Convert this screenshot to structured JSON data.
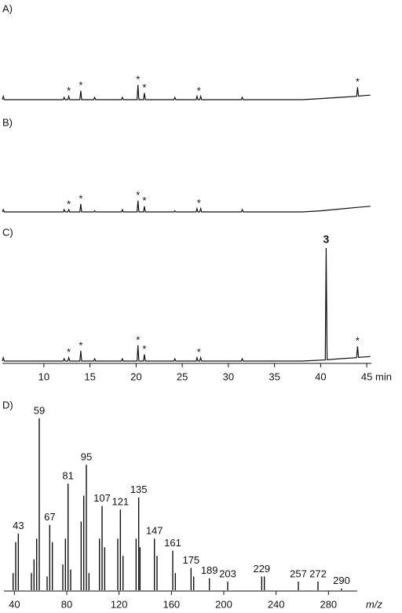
{
  "chart_data": [
    {
      "type": "line",
      "label": "A)",
      "color": "#111",
      "x": [
        5.5,
        5.6,
        5.7,
        12.1,
        12.2,
        12.3,
        12.6,
        12.7,
        12.8,
        13.9,
        14.0,
        14.1,
        15.4,
        15.5,
        15.6,
        18.4,
        18.5,
        18.6,
        20.1,
        20.2,
        20.3,
        20.8,
        20.9,
        21.0,
        24.1,
        24.2,
        24.3,
        26.5,
        26.6,
        26.7,
        26.9,
        27.0,
        27.1,
        31.4,
        31.5,
        31.6,
        38,
        40,
        42,
        43.9,
        44.0,
        44.1,
        45.4
      ],
      "values": [
        0,
        3,
        0,
        0,
        2,
        0,
        0,
        3,
        0,
        0,
        8,
        0,
        0,
        2,
        0,
        0,
        2,
        0,
        0,
        13,
        0,
        0,
        6,
        0,
        0,
        2,
        0,
        0,
        3,
        0,
        0,
        3,
        0,
        0,
        2,
        0,
        0,
        1,
        2,
        3,
        11,
        3.2,
        4
      ],
      "xlim": [
        5.5,
        45.5
      ],
      "ylim": [
        0,
        100
      ],
      "annotations": [
        {
          "text": "*",
          "x": 12.7
        },
        {
          "text": "*",
          "x": 14.0
        },
        {
          "text": "*",
          "x": 20.2
        },
        {
          "text": "*",
          "x": 20.9
        },
        {
          "text": "*",
          "x": 26.8
        },
        {
          "text": "*",
          "x": 44.0
        }
      ]
    },
    {
      "type": "line",
      "label": "B)",
      "color": "#111",
      "x": [
        5.5,
        5.6,
        5.7,
        12.1,
        12.2,
        12.3,
        12.6,
        12.7,
        12.8,
        13.9,
        14.0,
        14.1,
        15.4,
        15.5,
        15.6,
        18.4,
        18.5,
        18.6,
        20.1,
        20.2,
        20.3,
        20.8,
        20.9,
        21.0,
        24.1,
        24.2,
        24.3,
        26.5,
        26.6,
        26.7,
        26.9,
        27.0,
        27.1,
        31.4,
        31.5,
        31.6,
        38,
        40,
        42,
        44,
        45.4
      ],
      "values": [
        0,
        2,
        0,
        0,
        2,
        0,
        0,
        2,
        0,
        0,
        7,
        0,
        0,
        1,
        0,
        0,
        2,
        0,
        0,
        10,
        0,
        0,
        5,
        0,
        0,
        1,
        0,
        0,
        3,
        0,
        0,
        3,
        0,
        0,
        2,
        0,
        0,
        1,
        2.5,
        4,
        5
      ],
      "xlim": [
        5.5,
        45.5
      ],
      "ylim": [
        0,
        100
      ],
      "annotations": [
        {
          "text": "*",
          "x": 12.7
        },
        {
          "text": "*",
          "x": 14.0
        },
        {
          "text": "*",
          "x": 20.2
        },
        {
          "text": "*",
          "x": 20.9
        },
        {
          "text": "*",
          "x": 26.8
        }
      ]
    },
    {
      "type": "line",
      "label": "C)",
      "color": "#111",
      "x": [
        5.5,
        5.6,
        5.7,
        12.1,
        12.2,
        12.3,
        12.6,
        12.7,
        12.8,
        13.9,
        14.0,
        14.1,
        15.4,
        15.5,
        15.6,
        18.4,
        18.5,
        18.6,
        20.1,
        20.2,
        20.3,
        20.8,
        20.9,
        21.0,
        24.1,
        24.2,
        24.3,
        26.5,
        26.6,
        26.7,
        26.9,
        27.0,
        27.1,
        31.4,
        31.5,
        31.6,
        38,
        40.5,
        40.6,
        40.7,
        42,
        43.9,
        44.0,
        44.1,
        45.4
      ],
      "values": [
        0,
        3,
        0,
        0,
        2,
        0,
        0,
        3,
        0,
        0,
        9,
        0,
        0,
        2,
        0,
        0,
        2,
        0,
        0,
        14,
        0,
        0,
        6,
        0,
        0,
        2,
        0,
        0,
        3,
        0,
        0,
        3,
        0,
        0,
        2,
        0,
        0,
        1,
        100,
        1.2,
        2,
        3,
        13,
        3.2,
        4
      ],
      "xlim": [
        5.5,
        45.5
      ],
      "ylim": [
        0,
        100
      ],
      "xticks": [
        10,
        15,
        20,
        25,
        30,
        35,
        40,
        45
      ],
      "xlabel": "min",
      "annotations": [
        {
          "text": "*",
          "x": 12.7
        },
        {
          "text": "*",
          "x": 14.0
        },
        {
          "text": "*",
          "x": 20.2
        },
        {
          "text": "*",
          "x": 20.9
        },
        {
          "text": "*",
          "x": 26.8
        },
        {
          "text": "3",
          "x": 40.6,
          "bold": true
        },
        {
          "text": "*",
          "x": 44.0
        }
      ]
    },
    {
      "type": "bar",
      "label": "D)",
      "color": "#111",
      "x": [
        39,
        41,
        43,
        53,
        55,
        57,
        59,
        65,
        67,
        69,
        77,
        79,
        81,
        83,
        91,
        93,
        95,
        97,
        105,
        107,
        109,
        119,
        121,
        123,
        133,
        135,
        136,
        147,
        149,
        161,
        163,
        175,
        177,
        189,
        203,
        229,
        231,
        257,
        272,
        290
      ],
      "values": [
        10,
        28,
        33,
        10,
        18,
        30,
        100,
        8,
        38,
        28,
        15,
        30,
        62,
        12,
        40,
        55,
        73,
        10,
        30,
        49,
        25,
        30,
        47,
        20,
        30,
        54,
        25,
        30,
        20,
        23,
        10,
        13,
        8,
        7,
        5,
        8,
        8,
        5,
        5,
        1
      ],
      "xlim": [
        32,
        302
      ],
      "ylim": [
        0,
        100
      ],
      "xticks": [
        40,
        80,
        120,
        160,
        200,
        240,
        280
      ],
      "xlabel": "m/z",
      "peak_labels": [
        43,
        59,
        67,
        81,
        95,
        107,
        121,
        135,
        147,
        161,
        175,
        189,
        203,
        229,
        257,
        272,
        290
      ]
    }
  ]
}
